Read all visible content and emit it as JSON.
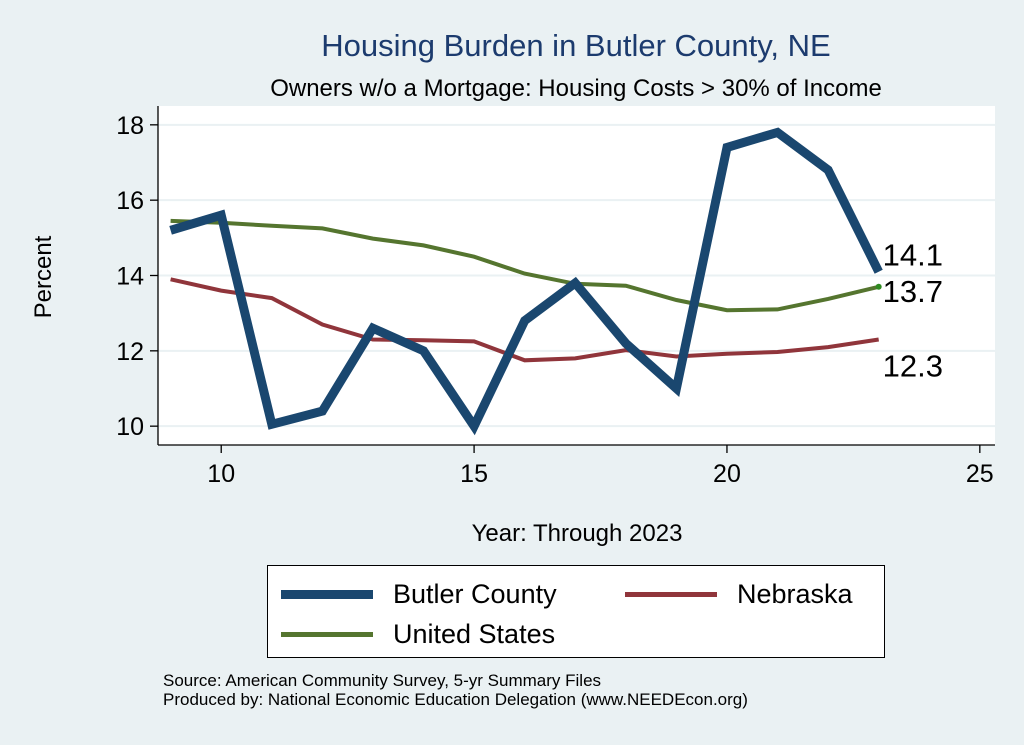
{
  "chart_data": {
    "type": "line",
    "title": "Housing Burden in Butler County, NE",
    "subtitle": "Owners w/o a Mortgage: Housing Costs > 30% of Income",
    "xlabel": "Year: Through 2023",
    "ylabel": "Percent",
    "xlim": [
      8.75,
      25.3
    ],
    "ylim": [
      9.5,
      18.5
    ],
    "xticks": [
      10,
      15,
      20,
      25
    ],
    "yticks": [
      10,
      12,
      14,
      16,
      18
    ],
    "x": [
      9,
      10,
      11,
      12,
      13,
      14,
      15,
      16,
      17,
      18,
      19,
      20,
      21,
      22,
      23
    ],
    "series": [
      {
        "name": "Butler County",
        "color": "#1a476f",
        "width": 9,
        "values": [
          15.2,
          15.6,
          10.05,
          10.4,
          12.6,
          12.0,
          10.0,
          12.8,
          13.8,
          12.2,
          11.0,
          17.4,
          17.8,
          16.8,
          14.1
        ],
        "end_label": "14.1"
      },
      {
        "name": "Nebraska",
        "color": "#90353b",
        "width": 4,
        "values": [
          13.9,
          13.6,
          13.4,
          12.7,
          12.3,
          12.28,
          12.25,
          11.75,
          11.8,
          12.02,
          11.85,
          11.92,
          11.97,
          12.1,
          12.3
        ],
        "end_label": "12.3"
      },
      {
        "name": "United States",
        "color": "#55752f",
        "width": 4,
        "values": [
          15.45,
          15.4,
          15.32,
          15.25,
          14.98,
          14.8,
          14.5,
          14.05,
          13.78,
          13.73,
          13.35,
          13.08,
          13.1,
          13.38,
          13.7
        ],
        "end_label": "13.7"
      }
    ],
    "legend": [
      "Butler County",
      "Nebraska",
      "United States"
    ],
    "legend_position": "bottom",
    "grid": true
  },
  "source": {
    "line1": "Source: American Community Survey, 5-yr Summary Files",
    "line2": "Produced by: National Economic Education Delegation (www.NEEDEcon.org)"
  }
}
